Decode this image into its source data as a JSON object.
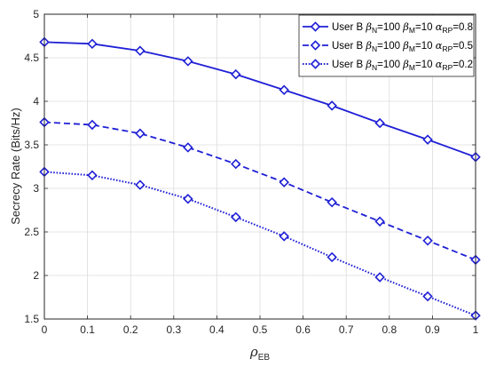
{
  "chart_data": {
    "type": "line",
    "xlabel_symbol": "ρ",
    "xlabel_sub": "EB",
    "ylabel": "Secrecy Rate (Bits/Hz)",
    "xlim": [
      0,
      1
    ],
    "ylim": [
      1.5,
      5
    ],
    "xticks": [
      "0",
      "0.1",
      "0.2",
      "0.3",
      "0.4",
      "0.5",
      "0.6",
      "0.7",
      "0.8",
      "0.9",
      "1"
    ],
    "yticks": [
      "1.5",
      "2",
      "2.5",
      "3",
      "3.5",
      "4",
      "4.5",
      "5"
    ],
    "grid": true,
    "legend_position": "top-right",
    "x": [
      0,
      0.111,
      0.222,
      0.333,
      0.444,
      0.556,
      0.667,
      0.778,
      0.889,
      1.0
    ],
    "series": [
      {
        "name": "User B βN=100 βM=10 αRP=0.8",
        "legend": {
          "prefix": "User B ",
          "b1": "β",
          "s1": "N",
          "v1": "=100 ",
          "b2": "β",
          "s2": "M",
          "v2": "=10 ",
          "a": "α",
          "s3": "RP",
          "v3": "=0.8"
        },
        "style": "solid",
        "values": [
          4.68,
          4.66,
          4.58,
          4.46,
          4.31,
          4.13,
          3.95,
          3.75,
          3.56,
          3.36
        ]
      },
      {
        "name": "User B βN=100 βM=10 αRP=0.5",
        "legend": {
          "prefix": "User B ",
          "b1": "β",
          "s1": "N",
          "v1": "=100 ",
          "b2": "β",
          "s2": "M",
          "v2": "=10 ",
          "a": "α",
          "s3": "RP",
          "v3": "=0.5"
        },
        "style": "dashed",
        "values": [
          3.76,
          3.73,
          3.63,
          3.47,
          3.28,
          3.07,
          2.84,
          2.62,
          2.4,
          2.18
        ]
      },
      {
        "name": "User B βN=100 βM=10 αRP=0.2",
        "legend": {
          "prefix": "User B ",
          "b1": "β",
          "s1": "N",
          "v1": "=100 ",
          "b2": "β",
          "s2": "M",
          "v2": "=10 ",
          "a": "α",
          "s3": "RP",
          "v3": "=0.2"
        },
        "style": "dotted",
        "values": [
          3.19,
          3.15,
          3.04,
          2.88,
          2.67,
          2.45,
          2.21,
          1.98,
          1.76,
          1.54
        ]
      }
    ],
    "line_color": "#1f1fd6"
  }
}
